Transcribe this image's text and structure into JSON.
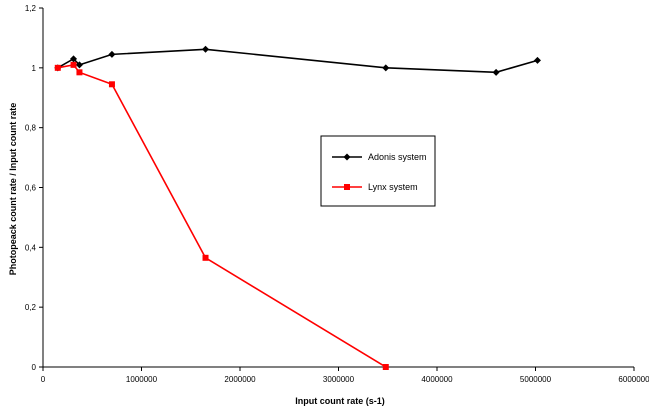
{
  "chart_data": {
    "type": "line",
    "xlabel": "Input count rate (s-1)",
    "ylabel": "Photopeack count rate / Input count rate",
    "xlim": [
      0,
      6000000
    ],
    "ylim": [
      0,
      1.2
    ],
    "x_ticks": [
      "0",
      "1000000",
      "2000000",
      "3000000",
      "4000000",
      "5000000",
      "6000000"
    ],
    "y_ticks": [
      "0",
      "0,2",
      "0,4",
      "0,6",
      "0,8",
      "1",
      "1,2"
    ],
    "grid": false,
    "legend_position": "right",
    "series": [
      {
        "name": "Adonis system",
        "color": "#000000",
        "marker": "diamond",
        "x": [
          150000,
          310000,
          370000,
          700000,
          1650000,
          3480000,
          4600000,
          5020000
        ],
        "y": [
          1.0,
          1.03,
          1.01,
          1.045,
          1.062,
          1.0,
          0.985,
          1.025
        ]
      },
      {
        "name": "Lynx system",
        "color": "#ff0000",
        "marker": "square",
        "x": [
          150000,
          310000,
          370000,
          700000,
          1650000,
          3480000
        ],
        "y": [
          1.0,
          1.01,
          0.985,
          0.945,
          0.365,
          0.0
        ]
      }
    ]
  }
}
